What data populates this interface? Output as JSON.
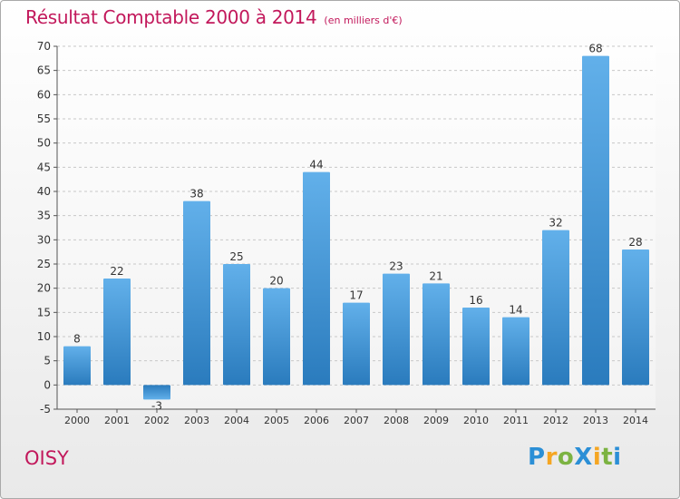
{
  "title": {
    "main": "Résultat Comptable 2000 à 2014",
    "unit": "(en milliers d'€)"
  },
  "town": "OISY",
  "logo": {
    "text": "ProXiti",
    "letters": [
      {
        "ch": "P",
        "color": "#2b8fd6"
      },
      {
        "ch": "r",
        "color": "#f5a623"
      },
      {
        "ch": "o",
        "color": "#7cb342"
      },
      {
        "ch": "X",
        "color": "#2b8fd6"
      },
      {
        "ch": "i",
        "color": "#f5a623"
      },
      {
        "ch": "t",
        "color": "#7cb342"
      },
      {
        "ch": "i",
        "color": "#2b8fd6"
      }
    ]
  },
  "colors": {
    "bar_light": "#62b0ea",
    "bar_dark": "#2a7bbd",
    "title": "#c2185b"
  },
  "chart_data": {
    "type": "bar",
    "title": "Résultat Comptable 2000 à 2014",
    "subtitle": "(en milliers d'€)",
    "categories": [
      "2000",
      "2001",
      "2002",
      "2003",
      "2004",
      "2005",
      "2006",
      "2007",
      "2008",
      "2009",
      "2010",
      "2011",
      "2012",
      "2013",
      "2014"
    ],
    "values": [
      8,
      22,
      -3,
      38,
      25,
      20,
      44,
      17,
      23,
      21,
      16,
      14,
      32,
      68,
      28
    ],
    "ylim": [
      -5,
      70
    ],
    "yticks": [
      -5,
      0,
      5,
      10,
      15,
      20,
      25,
      30,
      35,
      40,
      45,
      50,
      55,
      60,
      65,
      70
    ],
    "grid": true,
    "legend": "none"
  }
}
